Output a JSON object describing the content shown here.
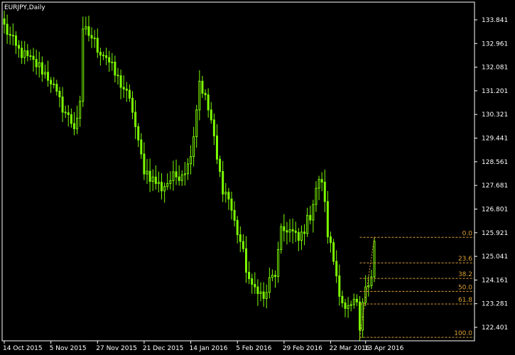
{
  "chart_title": "EURJPY,Daily",
  "colors": {
    "background": "#000000",
    "candles": "#7cfc00",
    "axis": "#ffffff",
    "fibonacci": "#dba036"
  },
  "chart_data": {
    "type": "candlestick",
    "title": "EURJPY,Daily",
    "symbol": "EURJPY",
    "timeframe": "Daily",
    "ylim": [
      121.9,
      134.5
    ],
    "y_ticks": [
      "133.841",
      "132.961",
      "132.081",
      "131.201",
      "130.321",
      "129.441",
      "128.561",
      "127.681",
      "126.801",
      "125.921",
      "125.041",
      "124.161",
      "123.281",
      "122.401"
    ],
    "x_ticks": [
      "14 Oct 2015",
      "5 Nov 2015",
      "27 Nov 2015",
      "21 Dec 2015",
      "14 Jan 2016",
      "5 Feb 2016",
      "29 Feb 2016",
      "22 Mar 2016",
      "13 Apr 2016"
    ],
    "close_path": [
      [
        0,
        133.6
      ],
      [
        4,
        132.8
      ],
      [
        8,
        132.4
      ],
      [
        12,
        132.1
      ],
      [
        16,
        131.6
      ],
      [
        18,
        131.0
      ],
      [
        20,
        130.6
      ],
      [
        22,
        130.2
      ],
      [
        24,
        129.9
      ],
      [
        26,
        130.6
      ],
      [
        27,
        133.5
      ],
      [
        30,
        133.2
      ],
      [
        32,
        132.8
      ],
      [
        35,
        132.5
      ],
      [
        38,
        131.8
      ],
      [
        41,
        131.3
      ],
      [
        44,
        130.5
      ],
      [
        46,
        129.2
      ],
      [
        48,
        128.3
      ],
      [
        51,
        127.9
      ],
      [
        54,
        127.6
      ],
      [
        57,
        127.9
      ],
      [
        60,
        128.1
      ],
      [
        63,
        128.4
      ],
      [
        65,
        129.6
      ],
      [
        67,
        131.6
      ],
      [
        69,
        130.9
      ],
      [
        71,
        130.1
      ],
      [
        73,
        128.6
      ],
      [
        75,
        127.6
      ],
      [
        77,
        127.2
      ],
      [
        79,
        126.3
      ],
      [
        81,
        125.6
      ],
      [
        83,
        124.6
      ],
      [
        85,
        123.8
      ],
      [
        87,
        123.9
      ],
      [
        89,
        123.4
      ],
      [
        91,
        124.1
      ],
      [
        93,
        124.4
      ],
      [
        95,
        125.9
      ],
      [
        97,
        126.1
      ],
      [
        99,
        125.9
      ],
      [
        101,
        125.6
      ],
      [
        103,
        126.1
      ],
      [
        105,
        126.6
      ],
      [
        107,
        127.6
      ],
      [
        109,
        127.9
      ],
      [
        111,
        125.9
      ],
      [
        113,
        124.9
      ],
      [
        115,
        123.8
      ],
      [
        117,
        123.0
      ],
      [
        119,
        123.1
      ],
      [
        121,
        123.3
      ],
      [
        122,
        122.3
      ],
      [
        124,
        124.0
      ],
      [
        126,
        124.4
      ],
      [
        127,
        125.6
      ]
    ],
    "fibonacci": {
      "levels": [
        {
          "label": "0.0",
          "price": 125.75
        },
        {
          "label": "23.6",
          "price": 124.8
        },
        {
          "label": "38.2",
          "price": 124.22
        },
        {
          "label": "50.0",
          "price": 123.74
        },
        {
          "label": "61.8",
          "price": 123.27
        },
        {
          "label": "100.0",
          "price": 122.03
        }
      ]
    }
  }
}
